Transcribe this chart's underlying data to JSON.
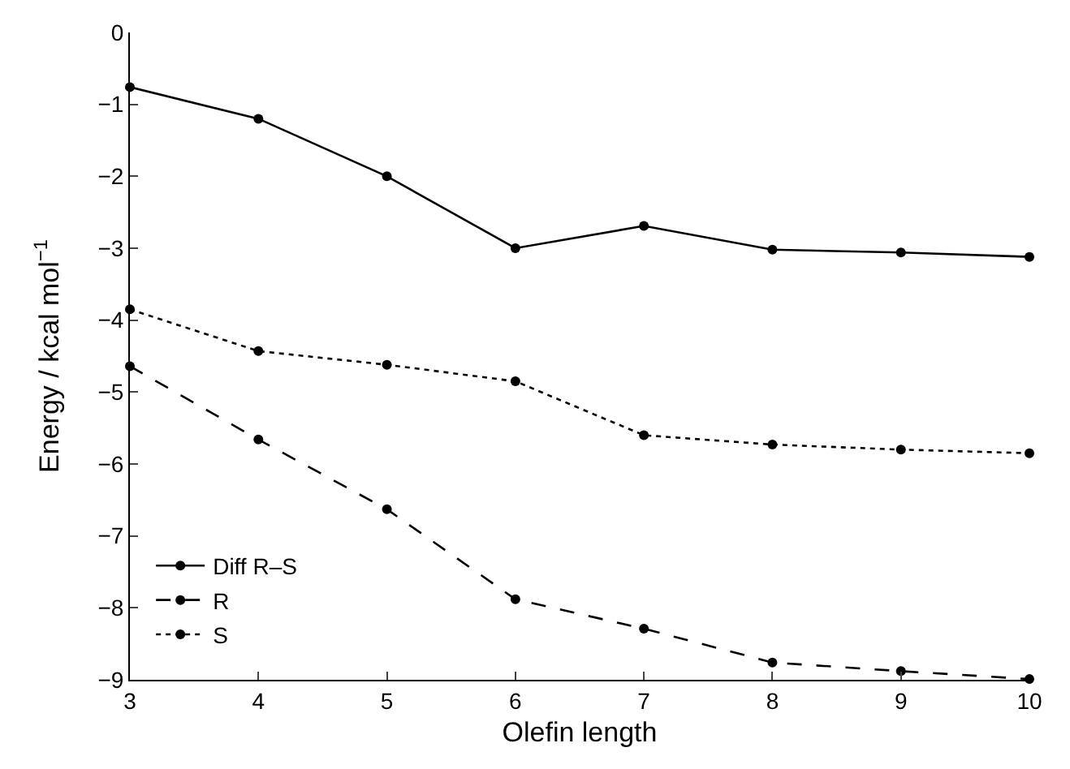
{
  "chart_data": {
    "type": "line",
    "xlabel": "Olefin length",
    "ylabel": "Energy / kcal mol$^{−1}$",
    "x": [
      3,
      4,
      5,
      6,
      7,
      8,
      9,
      10
    ],
    "series": [
      {
        "name": "Diff R–S",
        "color": "#000000",
        "line_style": "solid",
        "values": [
          -0.76,
          -1.2,
          -2.0,
          -3.0,
          -2.69,
          -3.02,
          -3.06,
          -3.12
        ]
      },
      {
        "name": "R",
        "color": "#000000",
        "line_style": "dashed",
        "values": [
          -4.64,
          -5.66,
          -6.63,
          -7.88,
          -8.29,
          -8.76,
          -8.88,
          -8.99
        ]
      },
      {
        "name": "S",
        "color": "#000000",
        "line_style": "dotted",
        "values": [
          -3.85,
          -4.43,
          -4.62,
          -4.85,
          -5.6,
          -5.73,
          -5.8,
          -5.85
        ]
      }
    ],
    "xlim": [
      3,
      10
    ],
    "xticks": [
      3,
      4,
      5,
      6,
      7,
      8,
      9,
      10
    ],
    "ylim": [
      -9,
      0
    ],
    "yticks": [
      -9,
      -8,
      -7,
      -6,
      -5,
      -4,
      -3,
      -2,
      -1,
      0
    ],
    "marker": "circle",
    "grid": false,
    "legend": "bottom left"
  }
}
